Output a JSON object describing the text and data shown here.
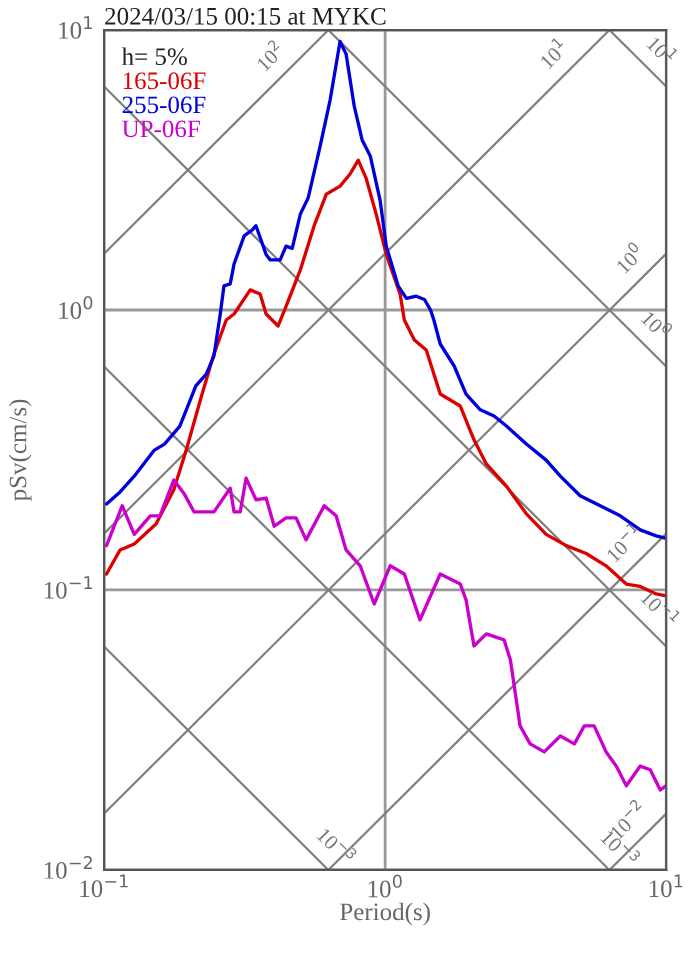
{
  "chart_data": {
    "type": "line",
    "title": "2024/03/15 00:15 at MYKC",
    "xlabel": "Period(s)",
    "ylabel": "pSv(cm/s)",
    "legend_title": "h= 5%",
    "legend": "top left",
    "log": "xy",
    "grid": true,
    "xlim": [
      0.1,
      10
    ],
    "ylim": [
      0.01,
      10
    ],
    "xticks": [
      {
        "value": 0.1,
        "label": "10$^{−1}$"
      },
      {
        "value": 1,
        "label": "10$^{0}$"
      },
      {
        "value": 10,
        "label": "10$^{1}$"
      }
    ],
    "yticks": [
      {
        "value": 0.01,
        "label": "10$^{−2}$"
      },
      {
        "value": 0.1,
        "label": "10$^{−1}$"
      },
      {
        "value": 1,
        "label": "10$^{0}$"
      },
      {
        "value": 10,
        "label": "10$^{1}$"
      }
    ],
    "series": [
      {
        "color": "#808080",
        "x": [
          0.1,
          0.628
        ],
        "values": [
          1.59,
          10
        ]
      },
      {
        "color": "#808080",
        "x": [
          0.1,
          6.28
        ],
        "values": [
          0.159,
          10
        ]
      },
      {
        "color": "#808080",
        "x": [
          0.1,
          10
        ],
        "values": [
          0.0159,
          1.59
        ]
      },
      {
        "color": "#808080",
        "x": [
          0.628,
          10
        ],
        "values": [
          0.01,
          0.159
        ]
      },
      {
        "color": "#808080",
        "x": [
          6.28,
          10
        ],
        "values": [
          0.01,
          0.0159
        ]
      },
      {
        "color": "#808080",
        "x": [
          6.28,
          10
        ],
        "values": [
          10,
          6.28
        ]
      },
      {
        "color": "#808080",
        "x": [
          0.628,
          10
        ],
        "values": [
          10,
          0.628
        ]
      },
      {
        "color": "#808080",
        "x": [
          0.1,
          10
        ],
        "values": [
          6.28,
          0.0628
        ]
      },
      {
        "color": "#808080",
        "x": [
          0.1,
          6.28
        ],
        "values": [
          0.628,
          0.01
        ]
      },
      {
        "color": "#808080",
        "x": [
          0.1,
          0.628
        ],
        "values": [
          0.0628,
          0.01
        ]
      },
      {
        "name": "165-06F",
        "color": "#dd0000",
        "x": [
          0.102,
          0.114,
          0.128,
          0.153,
          0.177,
          0.196,
          0.22,
          0.246,
          0.272,
          0.29,
          0.331,
          0.359,
          0.377,
          0.416,
          0.444,
          0.499,
          0.559,
          0.617,
          0.691,
          0.75,
          0.802,
          0.855,
          0.929,
          1.009,
          1.13,
          1.17,
          1.27,
          1.4,
          1.57,
          1.85,
          2.07,
          2.29,
          2.7,
          3.18,
          3.74,
          4.41,
          5.19,
          6.11,
          7.21,
          8.08,
          9.21,
          10
        ],
        "values": [
          0.114,
          0.139,
          0.146,
          0.172,
          0.228,
          0.316,
          0.477,
          0.697,
          0.921,
          0.968,
          1.18,
          1.14,
          0.968,
          0.877,
          1.03,
          1.39,
          2.0,
          2.59,
          2.77,
          3.06,
          3.43,
          2.96,
          2.2,
          1.58,
          1.14,
          0.921,
          0.782,
          0.72,
          0.501,
          0.454,
          0.344,
          0.282,
          0.235,
          0.187,
          0.158,
          0.144,
          0.135,
          0.122,
          0.105,
          0.103,
          0.0968,
          0.0952
        ]
      },
      {
        "name": "255-06F",
        "color": "#0000dd",
        "x": [
          0.102,
          0.114,
          0.128,
          0.151,
          0.164,
          0.186,
          0.212,
          0.231,
          0.246,
          0.259,
          0.267,
          0.281,
          0.29,
          0.315,
          0.336,
          0.347,
          0.377,
          0.39,
          0.423,
          0.444,
          0.467,
          0.499,
          0.532,
          0.587,
          0.637,
          0.691,
          0.726,
          0.776,
          0.828,
          0.885,
          0.959,
          1.009,
          1.112,
          1.19,
          1.29,
          1.38,
          1.45,
          1.49,
          1.57,
          1.76,
          1.94,
          2.18,
          2.44,
          2.7,
          3.18,
          3.74,
          4.2,
          4.94,
          5.82,
          6.86,
          8.08,
          9.21,
          10
        ],
        "values": [
          0.203,
          0.224,
          0.255,
          0.316,
          0.332,
          0.385,
          0.536,
          0.59,
          0.686,
          0.968,
          1.22,
          1.24,
          1.46,
          1.84,
          1.93,
          2.0,
          1.58,
          1.51,
          1.51,
          1.69,
          1.66,
          2.2,
          2.51,
          3.85,
          5.62,
          9.1,
          8.21,
          5.35,
          4.05,
          3.55,
          2.47,
          1.69,
          1.22,
          1.1,
          1.12,
          1.09,
          1.0,
          0.921,
          0.756,
          0.631,
          0.501,
          0.44,
          0.418,
          0.385,
          0.332,
          0.291,
          0.255,
          0.217,
          0.2,
          0.184,
          0.164,
          0.156,
          0.153
        ]
      },
      {
        "name": "UP-06F",
        "color": "#cc00cc",
        "x": [
          0.102,
          0.116,
          0.128,
          0.146,
          0.158,
          0.177,
          0.193,
          0.209,
          0.246,
          0.281,
          0.29,
          0.305,
          0.32,
          0.347,
          0.377,
          0.403,
          0.444,
          0.482,
          0.523,
          0.607,
          0.669,
          0.726,
          0.815,
          0.914,
          1.042,
          1.17,
          1.33,
          1.57,
          1.85,
          1.94,
          2.07,
          2.29,
          2.65,
          2.79,
          3.02,
          3.28,
          3.68,
          4.2,
          4.71,
          5.11,
          5.54,
          6.11,
          6.64,
          7.21,
          8.08,
          8.77,
          9.52,
          10
        ],
        "values": [
          0.144,
          0.2,
          0.158,
          0.184,
          0.184,
          0.247,
          0.22,
          0.19,
          0.19,
          0.231,
          0.19,
          0.19,
          0.251,
          0.21,
          0.213,
          0.169,
          0.181,
          0.181,
          0.151,
          0.2,
          0.184,
          0.139,
          0.122,
          0.0891,
          0.122,
          0.114,
          0.0782,
          0.114,
          0.105,
          0.0921,
          0.0631,
          0.0697,
          0.0663,
          0.0562,
          0.0327,
          0.0282,
          0.0264,
          0.0301,
          0.0282,
          0.0327,
          0.0327,
          0.0264,
          0.0235,
          0.02,
          0.0235,
          0.0228,
          0.0193,
          0.02
        ]
      }
    ],
    "annotations": [
      {
        "text": "10$^{2}$",
        "x": 0.444,
        "y": 7.07
      },
      {
        "text": "10$^{1}$",
        "x": 4.53,
        "y": 7.21
      },
      {
        "text": "10$^{1}$",
        "x": 8.45,
        "y": 7.43
      },
      {
        "text": "10$^{0}$",
        "x": 8.45,
        "y": 1.34
      },
      {
        "text": "10$^{0}$",
        "x": 8.08,
        "y": 0.777
      },
      {
        "text": "10$^{−1}$",
        "x": 8.08,
        "y": 0.129
      },
      {
        "text": "10$^{−1}$",
        "x": 8.32,
        "y": 0.0755
      },
      {
        "text": "10$^{−2}$",
        "x": 8.32,
        "y": 0.0132
      },
      {
        "text": "10$^{−3}$",
        "x": 6.0,
        "y": 0.0105
      },
      {
        "text": "10$^{−3}$",
        "x": 0.587,
        "y": 0.0107
      }
    ]
  }
}
